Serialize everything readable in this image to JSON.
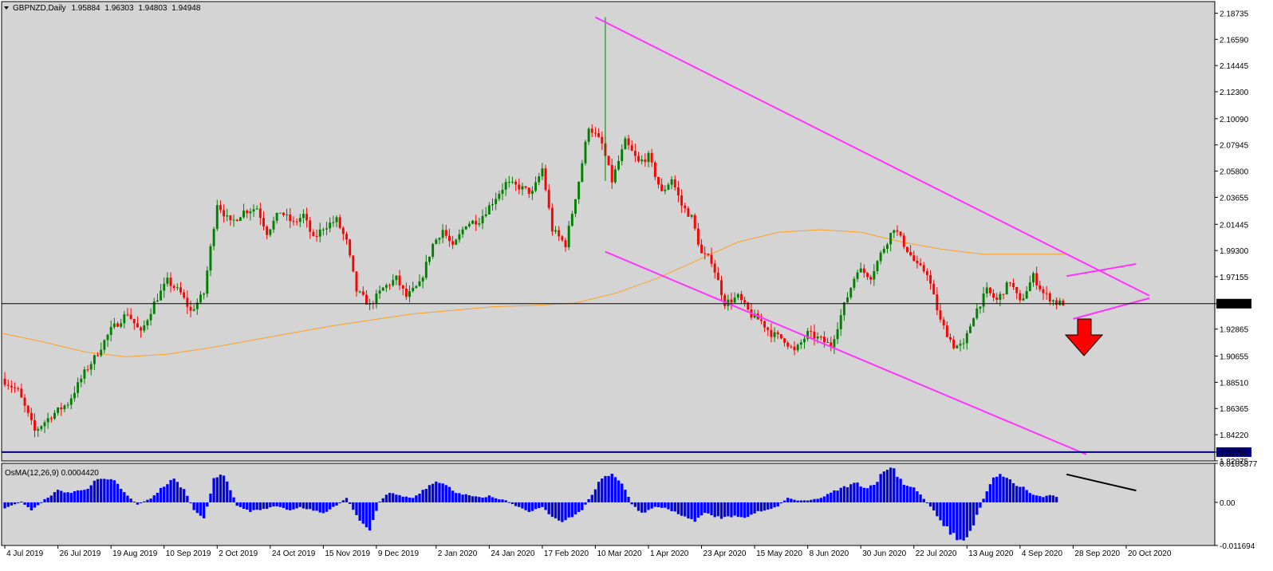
{
  "header": {
    "symbol": "GBPNZD,Daily",
    "open": "1.95884",
    "high": "1.96303",
    "low": "1.94803",
    "close": "1.94948"
  },
  "colors": {
    "background": "#d4d4d4",
    "bull": "#008000",
    "bear": "#ff0000",
    "trendline": "#ff33ff",
    "ma": "#ffa020",
    "osma": "#0000ff",
    "support": "#000080",
    "price_line": "#000000",
    "arrow": "#ff0000"
  },
  "chart_data": [
    {
      "type": "candlestick",
      "title": "GBPNZD,Daily",
      "timeframe": "Daily",
      "ylim": [
        1.8207,
        2.1968
      ],
      "y_ticks": [
        "2.18735",
        "2.16590",
        "2.14445",
        "2.12300",
        "2.10090",
        "2.07945",
        "2.05800",
        "2.03655",
        "2.01445",
        "1.99300",
        "1.97155",
        "1.94948",
        "1.92865",
        "1.90655",
        "1.88510",
        "1.86365",
        "1.84220",
        "1.82794",
        "1.82075"
      ],
      "x_ticks": [
        "4 Jul 2019",
        "26 Jul 2019",
        "19 Aug 2019",
        "10 Sep 2019",
        "2 Oct 2019",
        "24 Oct 2019",
        "15 Nov 2019",
        "9 Dec 2019",
        "2 Jan 2020",
        "24 Jan 2020",
        "17 Feb 2020",
        "10 Mar 2020",
        "1 Apr 2020",
        "23 Apr 2020",
        "15 May 2020",
        "8 Jun 2020",
        "30 Jun 2020",
        "22 Jul 2020",
        "13 Aug 2020",
        "4 Sep 2020",
        "28 Sep 2020",
        "20 Oct 2020"
      ],
      "current_price": "1.94948",
      "support_level": "1.82794",
      "price_path": [
        [
          0,
          1.888
        ],
        [
          5,
          1.878
        ],
        [
          10,
          1.845
        ],
        [
          15,
          1.858
        ],
        [
          20,
          1.868
        ],
        [
          25,
          1.893
        ],
        [
          28,
          1.905
        ],
        [
          33,
          1.928
        ],
        [
          38,
          1.942
        ],
        [
          42,
          1.925
        ],
        [
          46,
          1.95
        ],
        [
          50,
          1.968
        ],
        [
          54,
          1.958
        ],
        [
          57,
          1.943
        ],
        [
          61,
          1.958
        ],
        [
          65,
          2.032
        ],
        [
          69,
          2.015
        ],
        [
          73,
          2.025
        ],
        [
          77,
          2.028
        ],
        [
          80,
          2.008
        ],
        [
          84,
          2.025
        ],
        [
          88,
          2.015
        ],
        [
          91,
          2.022
        ],
        [
          94,
          2.002
        ],
        [
          97,
          2.012
        ],
        [
          101,
          2.018
        ],
        [
          104,
          2.0
        ],
        [
          107,
          1.96
        ],
        [
          111,
          1.948
        ],
        [
          115,
          1.962
        ],
        [
          119,
          1.97
        ],
        [
          122,
          1.955
        ],
        [
          126,
          1.965
        ],
        [
          130,
          1.998
        ],
        [
          133,
          2.01
        ],
        [
          136,
          1.995
        ],
        [
          140,
          2.015
        ],
        [
          144,
          2.018
        ],
        [
          148,
          2.033
        ],
        [
          152,
          2.048
        ],
        [
          156,
          2.045
        ],
        [
          160,
          2.04
        ],
        [
          163,
          2.06
        ],
        [
          166,
          2.01
        ],
        [
          170,
          1.998
        ],
        [
          174,
          2.05
        ],
        [
          177,
          2.095
        ],
        [
          181,
          2.08
        ],
        [
          184,
          2.05
        ],
        [
          188,
          2.082
        ],
        [
          192,
          2.065
        ],
        [
          195,
          2.07
        ],
        [
          199,
          2.04
        ],
        [
          202,
          2.052
        ],
        [
          205,
          2.03
        ],
        [
          208,
          2.02
        ],
        [
          211,
          1.99
        ],
        [
          214,
          1.985
        ],
        [
          218,
          1.95
        ],
        [
          222,
          1.955
        ],
        [
          226,
          1.94
        ],
        [
          229,
          1.935
        ],
        [
          232,
          1.925
        ],
        [
          236,
          1.92
        ],
        [
          239,
          1.91
        ],
        [
          243,
          1.925
        ],
        [
          247,
          1.92
        ],
        [
          250,
          1.915
        ],
        [
          254,
          1.948
        ],
        [
          258,
          1.978
        ],
        [
          262,
          1.972
        ],
        [
          265,
          1.99
        ],
        [
          269,
          2.012
        ],
        [
          272,
          1.998
        ],
        [
          276,
          1.98
        ],
        [
          279,
          1.975
        ],
        [
          283,
          1.935
        ],
        [
          287,
          1.915
        ],
        [
          290,
          1.915
        ],
        [
          293,
          1.94
        ],
        [
          297,
          1.96
        ],
        [
          300,
          1.952
        ],
        [
          304,
          1.968
        ],
        [
          307,
          1.95
        ],
        [
          311,
          1.972
        ],
        [
          314,
          1.958
        ],
        [
          318,
          1.95
        ]
      ],
      "candles_start_date": "4 Jul 2019",
      "series": [
        {
          "name": "",
          "type": "moving_average",
          "values": [
            1.925,
            1.918,
            1.91,
            1.906,
            1.908,
            1.913,
            1.919,
            1.925,
            1.931,
            1.936,
            1.941,
            1.944,
            1.947,
            1.948,
            1.95,
            1.958,
            1.97,
            1.985,
            2.0,
            2.008,
            2.01,
            2.008,
            2.0,
            1.994,
            1.99,
            1.99,
            1.99
          ]
        }
      ],
      "trendlines": [
        {
          "from": [
            "10 Mar 2020",
            2.184
          ],
          "to": [
            "29 Oct 2020",
            1.956
          ]
        },
        {
          "from": [
            "13 Mar 2020",
            1.992
          ],
          "to": [
            "2 Oct 2020",
            1.826
          ]
        },
        {
          "from": [
            "24 Sep 2020",
            1.972
          ],
          "to": [
            "23 Oct 2020",
            1.982
          ]
        },
        {
          "from": [
            "26 Sep 2020",
            1.937
          ],
          "to": [
            "29 Oct 2020",
            1.954
          ]
        }
      ],
      "annotation": "down-arrow-icon"
    },
    {
      "type": "bar",
      "title": "OsMA(12,26,9) 0.0004420",
      "indicator": "OsMA(12,26,9)",
      "value": "0.0004420",
      "ylim": [
        -0.011694,
        0.0105877
      ],
      "y_ticks": [
        "0.0105877",
        "0.00",
        "-0.011694"
      ],
      "histogram_path": [
        [
          0,
          -0.0015
        ],
        [
          5,
          0.0002
        ],
        [
          8,
          -0.0022
        ],
        [
          12,
          0.0008
        ],
        [
          16,
          0.0032
        ],
        [
          20,
          0.0026
        ],
        [
          25,
          0.004
        ],
        [
          28,
          0.0061
        ],
        [
          31,
          0.0058
        ],
        [
          33,
          0.0062
        ],
        [
          35,
          0.0035
        ],
        [
          38,
          0.001
        ],
        [
          40,
          -0.0006
        ],
        [
          44,
          0.0011
        ],
        [
          48,
          0.0045
        ],
        [
          51,
          0.0062
        ],
        [
          54,
          0.0035
        ],
        [
          57,
          -0.002
        ],
        [
          60,
          -0.0048
        ],
        [
          63,
          0.006
        ],
        [
          66,
          0.008
        ],
        [
          68,
          0.0035
        ],
        [
          70,
          -0.001
        ],
        [
          74,
          -0.0024
        ],
        [
          78,
          -0.0018
        ],
        [
          82,
          -0.001
        ],
        [
          86,
          -0.0021
        ],
        [
          89,
          -0.0013
        ],
        [
          92,
          -0.002
        ],
        [
          96,
          -0.003
        ],
        [
          100,
          -0.0008
        ],
        [
          103,
          0.0012
        ],
        [
          105,
          -0.002
        ],
        [
          108,
          -0.006
        ],
        [
          110,
          -0.007
        ],
        [
          113,
          0.0002
        ],
        [
          116,
          0.0028
        ],
        [
          119,
          0.0018
        ],
        [
          123,
          0.0012
        ],
        [
          127,
          0.004
        ],
        [
          130,
          0.0062
        ],
        [
          133,
          0.0045
        ],
        [
          136,
          0.0028
        ],
        [
          140,
          0.0018
        ],
        [
          144,
          0.0012
        ],
        [
          146,
          0.0018
        ],
        [
          148,
          0.001
        ],
        [
          151,
          0.0006
        ],
        [
          154,
          -0.001
        ],
        [
          158,
          -0.0025
        ],
        [
          162,
          -0.0012
        ],
        [
          165,
          -0.0038
        ],
        [
          168,
          -0.0055
        ],
        [
          171,
          -0.004
        ],
        [
          174,
          -0.002
        ],
        [
          177,
          0.0022
        ],
        [
          180,
          0.0068
        ],
        [
          183,
          0.0075
        ],
        [
          186,
          0.0055
        ],
        [
          189,
          -0.0005
        ],
        [
          192,
          -0.003
        ],
        [
          196,
          -0.0012
        ],
        [
          199,
          -0.0016
        ],
        [
          202,
          -0.0025
        ],
        [
          205,
          -0.0042
        ],
        [
          208,
          -0.0048
        ],
        [
          211,
          -0.003
        ],
        [
          214,
          -0.0038
        ],
        [
          217,
          -0.0042
        ],
        [
          220,
          -0.0035
        ],
        [
          224,
          -0.004
        ],
        [
          227,
          -0.0025
        ],
        [
          230,
          -0.002
        ],
        [
          233,
          -0.001
        ],
        [
          236,
          0.0012
        ],
        [
          239,
          0.0005
        ],
        [
          242,
          0.0005
        ],
        [
          246,
          0.0012
        ],
        [
          250,
          0.003
        ],
        [
          254,
          0.0045
        ],
        [
          257,
          0.0052
        ],
        [
          260,
          0.0038
        ],
        [
          263,
          0.006
        ],
        [
          266,
          0.0095
        ],
        [
          268,
          0.009
        ],
        [
          271,
          0.005
        ],
        [
          274,
          0.004
        ],
        [
          277,
          0.001
        ],
        [
          280,
          -0.0022
        ],
        [
          283,
          -0.006
        ],
        [
          286,
          -0.009
        ],
        [
          289,
          -0.011
        ],
        [
          292,
          -0.006
        ],
        [
          295,
          0.001
        ],
        [
          298,
          0.0065
        ],
        [
          301,
          0.0075
        ],
        [
          304,
          0.005
        ],
        [
          307,
          0.004
        ],
        [
          310,
          0.002
        ],
        [
          313,
          0.0015
        ],
        [
          316,
          0.002
        ],
        [
          318,
          0.0008
        ]
      ],
      "divergence_line": {
        "from": [
          "24 Sep 2020",
          0.0076
        ],
        "to": [
          "23 Oct 2020",
          0.0032
        ]
      }
    }
  ]
}
